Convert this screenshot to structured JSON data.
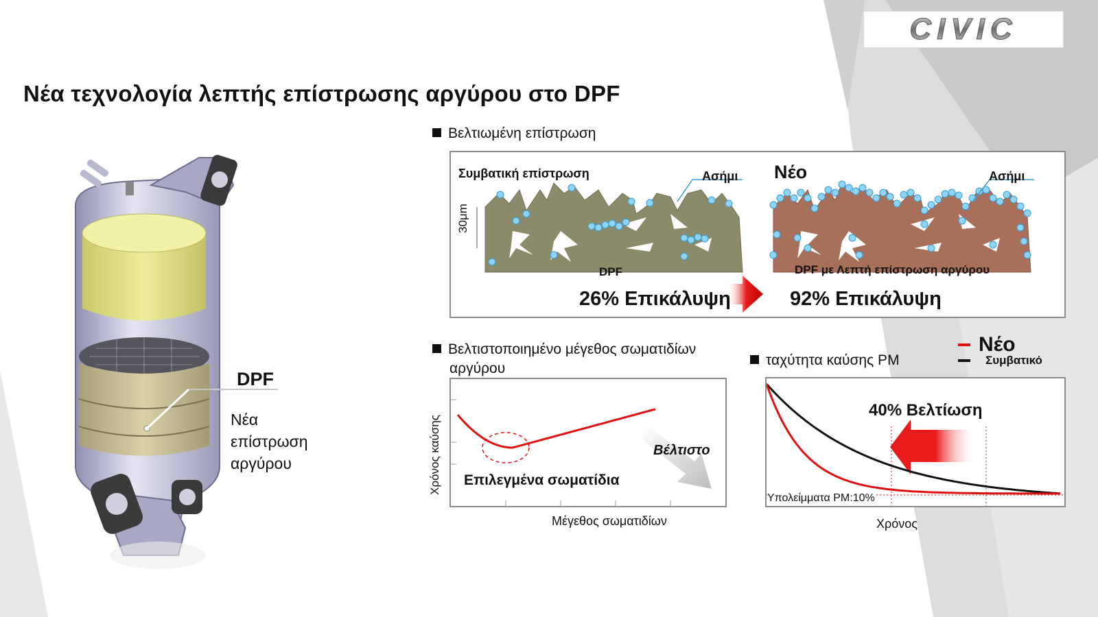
{
  "slide": {
    "title": "Νέα τεχνολογία λεπτής επίστρωσης αργύρου στο DPF",
    "logo_text": "CIVIC"
  },
  "left_panel": {
    "callout_title": "DPF",
    "callout_lines": [
      "Νέα",
      "επίστρωση",
      "αργύρου"
    ]
  },
  "coating_section": {
    "heading": "Βελτιωμένη επίστρωση",
    "left": {
      "title": "Συμβατική επίστρωση",
      "silver_label": "Ασήμι",
      "scale_label": "30μm",
      "substrate_label": "DPF",
      "coverage": "26% Επικάλυψη",
      "color": "#8b8a6a"
    },
    "right": {
      "title": "Νέο",
      "silver_label": "Ασήμι",
      "substrate_label": "DPF με Λεπτή επίστρωση αργύρου",
      "coverage": "92% Επικάλυψη",
      "color": "#a8705a"
    },
    "silver_color": "#7ec8f0",
    "arrow_color": "#e81c1c"
  },
  "particle_section": {
    "heading_line1": "Βελτιστοποιημένο μέγεθος σωματιδίων",
    "heading_line2": "αργύρου",
    "xlabel": "Μέγεθος σωματιδίων",
    "ylabel": "Χρόνος καύσης",
    "selected_label": "Επιλεγμένα σωματίδια",
    "optimal_label": "Βέλτιστο"
  },
  "pm_section": {
    "heading": "ταχύτητα καύσης PM",
    "legend": [
      {
        "name": "Νέο",
        "color": "#e01010"
      },
      {
        "name": "Συμβατικό",
        "color": "#111111"
      }
    ],
    "improvement_label": "40% Βελτίωση",
    "residue_label": "Υπολείμματα PM:10%",
    "xlabel": "Χρόνος"
  },
  "chart_data": [
    {
      "type": "line",
      "title": "",
      "xlabel": "Μέγεθος σωματιδίων",
      "ylabel": "Χρόνος καύσης",
      "series": [
        {
          "values_shape": "U-shaped curve with minimum at selected particle size"
        }
      ]
    },
    {
      "type": "line",
      "title": "",
      "xlabel": "Χρόνος",
      "ylabel": "",
      "series": [
        {
          "name": "Νέο",
          "color": "#e01010"
        },
        {
          "name": "Συμβατικό",
          "color": "#111111"
        }
      ]
    }
  ]
}
